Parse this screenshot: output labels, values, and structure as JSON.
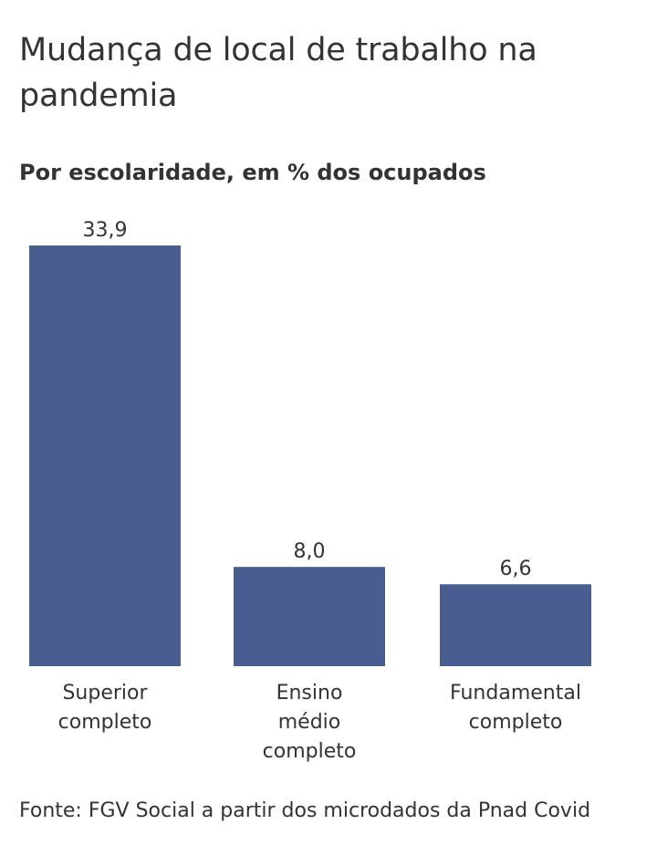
{
  "header": {
    "title": "Mudança de local de trabalho na pandemia",
    "subtitle": "Por escolaridade, em % dos ocupados"
  },
  "footer": {
    "source": "Fonte: FGV Social a partir dos microdados da Pnad Covid"
  },
  "chart_data": {
    "type": "bar",
    "title": "Mudança de local de trabalho na pandemia",
    "subtitle": "Por escolaridade, em % dos ocupados",
    "categories": [
      "Superior completo",
      "Ensino médio completo",
      "Fundamental completo"
    ],
    "category_lines": [
      [
        "Superior",
        "completo"
      ],
      [
        "Ensino",
        "médio",
        "completo"
      ],
      [
        "Fundamental",
        "completo"
      ]
    ],
    "values": [
      33.9,
      8.0,
      6.6
    ],
    "value_labels": [
      "33,9",
      "8,0",
      "6,6"
    ],
    "xlabel": "",
    "ylabel": "",
    "ylim": [
      0,
      33.9
    ],
    "grid": false,
    "bar_color": "#4a5d91"
  }
}
